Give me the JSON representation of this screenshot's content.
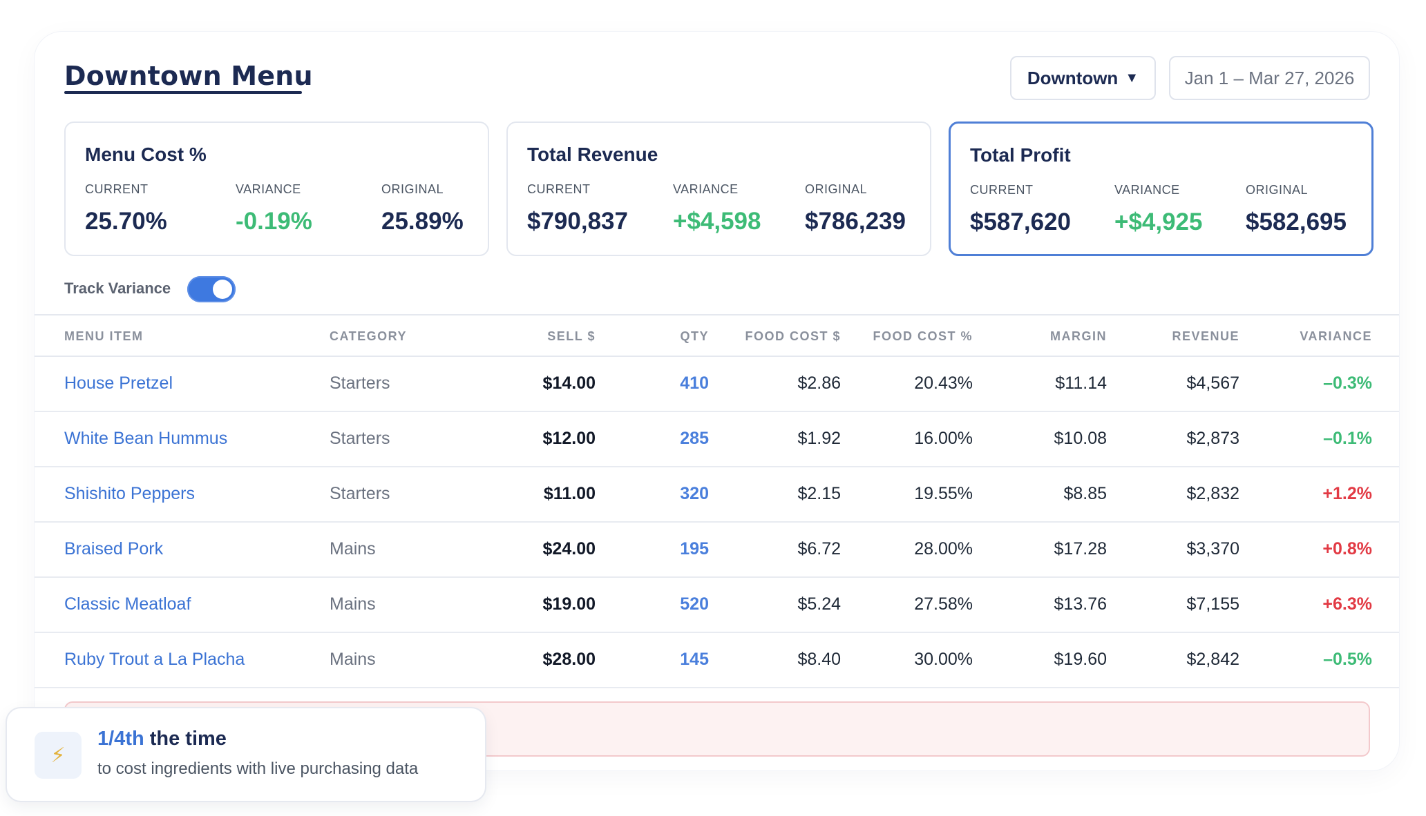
{
  "header": {
    "title": "Downtown Menu",
    "location": "Downtown",
    "location_caret": "▼",
    "date_range": "Jan 1 – Mar 27, 2026"
  },
  "kpis": [
    {
      "title": "Menu Cost %",
      "current_label": "CURRENT",
      "current": "25.70%",
      "variance_label": "VARIANCE",
      "variance": "-0.19%",
      "original_label": "ORIGINAL",
      "original": "25.89%"
    },
    {
      "title": "Total Revenue",
      "current_label": "CURRENT",
      "current": "$790,837",
      "variance_label": "VARIANCE",
      "variance": "+$4,598",
      "original_label": "ORIGINAL",
      "original": "$786,239"
    },
    {
      "title": "Total Profit",
      "current_label": "CURRENT",
      "current": "$587,620",
      "variance_label": "VARIANCE",
      "variance": "+$4,925",
      "original_label": "ORIGINAL",
      "original": "$582,695"
    }
  ],
  "track_variance": {
    "label": "Track Variance",
    "enabled": true
  },
  "table": {
    "columns": [
      "MENU ITEM",
      "CATEGORY",
      "SELL $",
      "QTY",
      "FOOD COST $",
      "FOOD COST %",
      "MARGIN",
      "REVENUE",
      "VARIANCE"
    ],
    "rows": [
      {
        "name": "House Pretzel",
        "category": "Starters",
        "sell": "$14.00",
        "qty": "410",
        "food_cost": "$2.86",
        "food_cost_pct": "20.43%",
        "margin": "$11.14",
        "revenue": "$4,567",
        "variance": "–0.3%",
        "variance_dir": "pos"
      },
      {
        "name": "White Bean Hummus",
        "category": "Starters",
        "sell": "$12.00",
        "qty": "285",
        "food_cost": "$1.92",
        "food_cost_pct": "16.00%",
        "margin": "$10.08",
        "revenue": "$2,873",
        "variance": "–0.1%",
        "variance_dir": "pos"
      },
      {
        "name": "Shishito Peppers",
        "category": "Starters",
        "sell": "$11.00",
        "qty": "320",
        "food_cost": "$2.15",
        "food_cost_pct": "19.55%",
        "margin": "$8.85",
        "revenue": "$2,832",
        "variance": "+1.2%",
        "variance_dir": "neg"
      },
      {
        "name": "Braised Pork",
        "category": "Mains",
        "sell": "$24.00",
        "qty": "195",
        "food_cost": "$6.72",
        "food_cost_pct": "28.00%",
        "margin": "$17.28",
        "revenue": "$3,370",
        "variance": "+0.8%",
        "variance_dir": "neg"
      },
      {
        "name": "Classic Meatloaf",
        "category": "Mains",
        "sell": "$19.00",
        "qty": "520",
        "food_cost": "$5.24",
        "food_cost_pct": "27.58%",
        "margin": "$13.76",
        "revenue": "$7,155",
        "variance": "+6.3%",
        "variance_dir": "neg"
      },
      {
        "name": "Ruby Trout a La Placha",
        "category": "Mains",
        "sell": "$28.00",
        "qty": "145",
        "food_cost": "$8.40",
        "food_cost_pct": "30.00%",
        "margin": "$19.60",
        "revenue": "$2,842",
        "variance": "–0.5%",
        "variance_dir": "pos"
      }
    ]
  },
  "promo": {
    "icon": "lightning-icon",
    "headline_highlight": "1/4th",
    "headline_rest": " the time",
    "subtext": "to cost ingredients with live purchasing data"
  },
  "colors": {
    "accent_blue": "#3e79e0",
    "link_blue": "#3b73d4",
    "positive_green": "#3dbb76",
    "negative_red": "#e23a44",
    "navy": "#1c2a52"
  }
}
